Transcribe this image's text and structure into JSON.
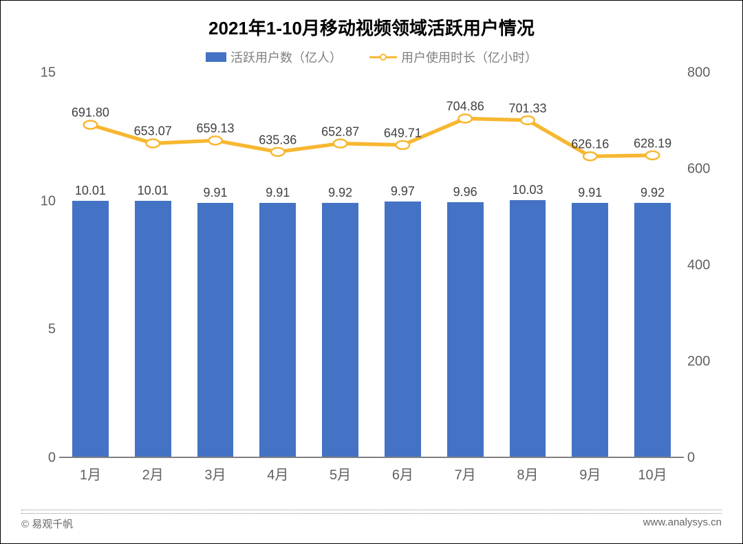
{
  "title": "2021年1-10月移动视频领域活跃用户情况",
  "legend": {
    "bar_label": "活跃用户数（亿人）",
    "line_label": "用户使用时长（亿小时）"
  },
  "chart": {
    "type": "bar-line-combo",
    "categories": [
      "1月",
      "2月",
      "3月",
      "4月",
      "5月",
      "6月",
      "7月",
      "8月",
      "9月",
      "10月"
    ],
    "bar_series": {
      "values": [
        10.01,
        10.01,
        9.91,
        9.91,
        9.92,
        9.97,
        9.96,
        10.03,
        9.91,
        9.92
      ],
      "value_labels": [
        "10.01",
        "10.01",
        "9.91",
        "9.91",
        "9.92",
        "9.97",
        "9.96",
        "10.03",
        "9.91",
        "9.92"
      ],
      "color": "#4472c4",
      "y_axis": "left",
      "bar_width_pct": 58
    },
    "line_series": {
      "values": [
        691.8,
        653.07,
        659.13,
        635.36,
        652.87,
        649.71,
        704.86,
        701.33,
        626.16,
        628.19
      ],
      "value_labels": [
        "691.80",
        "653.07",
        "659.13",
        "635.36",
        "652.87",
        "649.71",
        "704.86",
        "701.33",
        "626.16",
        "628.19"
      ],
      "color": "#f7b731",
      "marker_fill": "#ffffff",
      "marker_border": "#f7b731",
      "marker_radius": 6,
      "line_width": 3,
      "y_axis": "right"
    },
    "left_axis": {
      "min": 0,
      "max": 15,
      "ticks": [
        0,
        5,
        10,
        15
      ],
      "tick_labels": [
        "0",
        "5",
        "10",
        "15"
      ]
    },
    "right_axis": {
      "min": 0,
      "max": 800,
      "ticks": [
        0,
        200,
        400,
        600,
        800
      ],
      "tick_labels": [
        "0",
        "200",
        "400",
        "600",
        "800"
      ]
    },
    "background_color": "#ffffff",
    "axis_color": "#808080",
    "label_color": "#404040",
    "tick_label_color": "#606060",
    "title_fontsize": 26,
    "axis_fontsize": 20,
    "value_label_fontsize": 18
  },
  "footer": {
    "left": "© 易观千帆",
    "right": "www.analysys.cn"
  }
}
